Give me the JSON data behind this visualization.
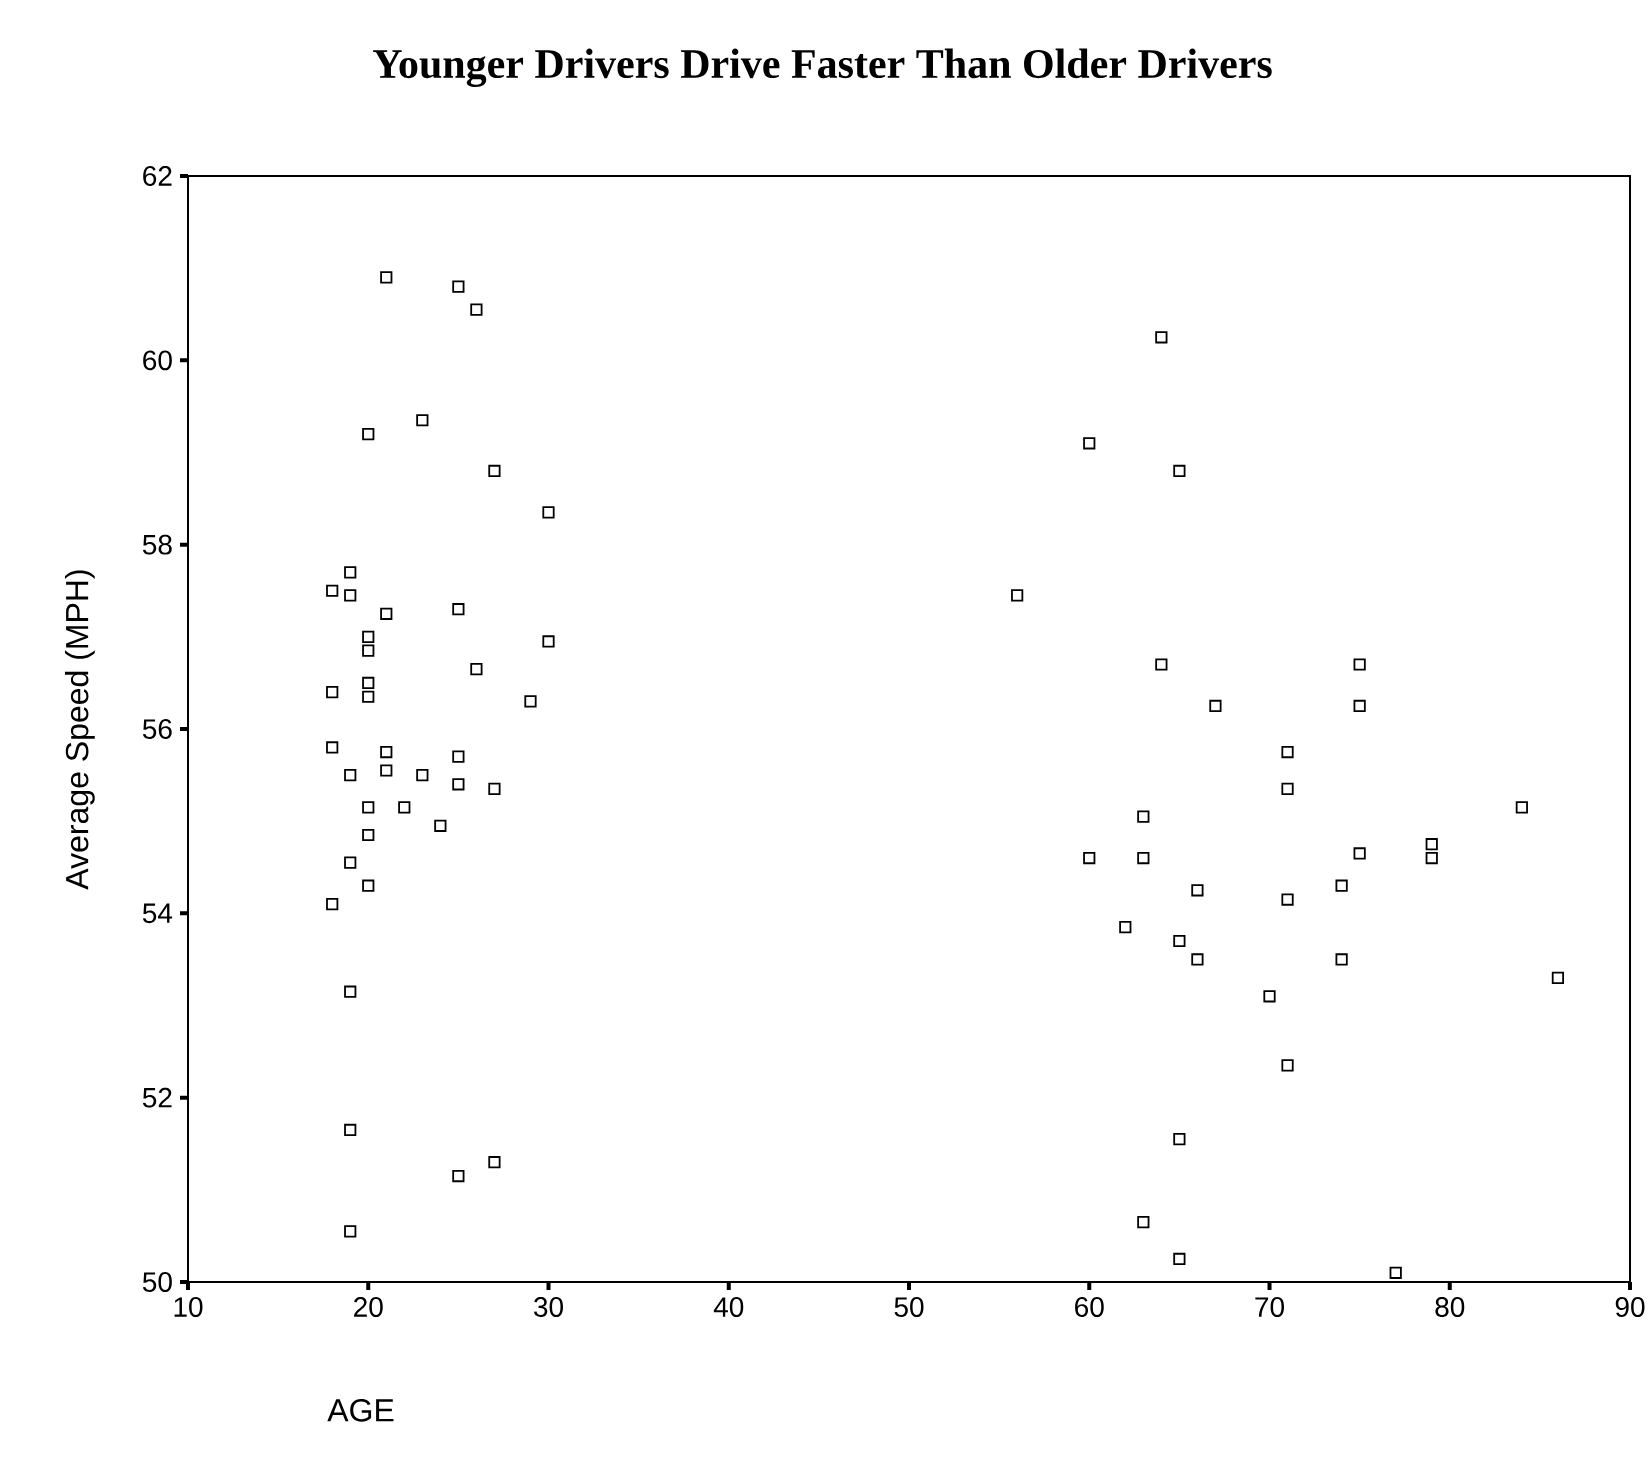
{
  "chart_data": {
    "type": "scatter",
    "title": "Younger Drivers Drive Faster Than Older Drivers",
    "xlabel": "AGE",
    "ylabel": "Average Speed (MPH)",
    "xlim": [
      10,
      90
    ],
    "xticks": [
      10,
      20,
      30,
      40,
      50,
      60,
      70,
      80,
      90
    ],
    "ylim": [
      50,
      62
    ],
    "yticks": [
      50,
      52,
      54,
      56,
      58,
      60,
      62
    ],
    "marker": "square",
    "series": [
      {
        "color": "#000000",
        "x": [
          21,
          25,
          26,
          20,
          23,
          27,
          30,
          18,
          19,
          19,
          21,
          25,
          20,
          20,
          30,
          26,
          20,
          20,
          18,
          29,
          18,
          21,
          21,
          19,
          23,
          25,
          25,
          27,
          20,
          22,
          20,
          24,
          19,
          20,
          18,
          19,
          19,
          25,
          27,
          19,
          64,
          60,
          65,
          56,
          64,
          75,
          67,
          75,
          71,
          71,
          84,
          63,
          60,
          63,
          75,
          79,
          79,
          66,
          74,
          71,
          62,
          65,
          66,
          74,
          70,
          86,
          71,
          65,
          63,
          65,
          77
        ],
        "values": [
          60.9,
          60.8,
          60.55,
          59.2,
          59.35,
          58.8,
          58.35,
          57.5,
          57.7,
          57.45,
          57.25,
          57.3,
          57.0,
          56.85,
          56.95,
          56.65,
          56.5,
          56.35,
          56.4,
          56.3,
          55.8,
          55.75,
          55.55,
          55.5,
          55.5,
          55.7,
          55.4,
          55.35,
          55.15,
          55.15,
          54.85,
          54.95,
          54.55,
          54.3,
          54.1,
          53.15,
          51.65,
          51.15,
          51.3,
          50.55,
          60.25,
          59.1,
          58.8,
          57.45,
          56.7,
          56.7,
          56.25,
          56.25,
          55.75,
          55.35,
          55.15,
          55.05,
          54.6,
          54.6,
          54.65,
          54.75,
          54.6,
          54.25,
          54.3,
          54.15,
          53.85,
          53.7,
          53.5,
          53.5,
          53.1,
          53.3,
          52.35,
          51.55,
          50.65,
          50.25,
          50.1
        ]
      }
    ]
  }
}
